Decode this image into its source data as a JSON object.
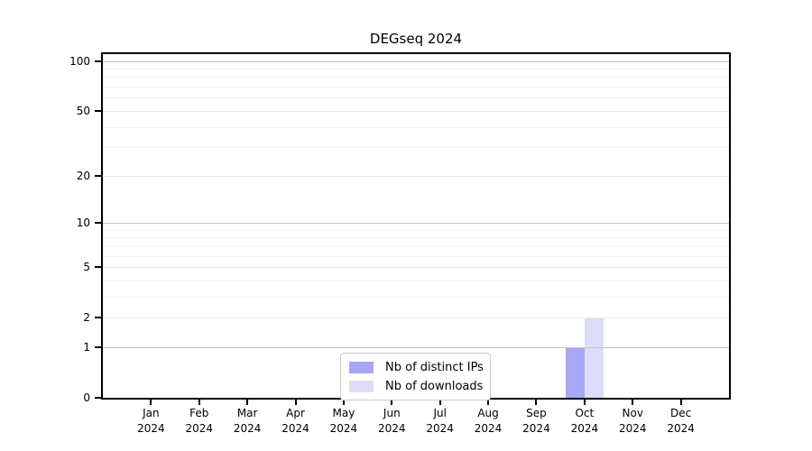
{
  "chart_data": {
    "type": "bar",
    "title": "DEGseq 2024",
    "x_months": [
      "Jan",
      "Feb",
      "Mar",
      "Apr",
      "May",
      "Jun",
      "Jul",
      "Aug",
      "Sep",
      "Oct",
      "Nov",
      "Dec"
    ],
    "x_year": "2024",
    "series": [
      {
        "name": "Nb of distinct IPs",
        "color": "#a7a7f6",
        "values": [
          0,
          0,
          0,
          0,
          0,
          0,
          0,
          0,
          0,
          1,
          0,
          0
        ]
      },
      {
        "name": "Nb of downloads",
        "color": "#dcdcf6",
        "values": [
          0,
          0,
          0,
          0,
          0,
          0,
          0,
          0,
          0,
          2,
          0,
          0
        ]
      }
    ],
    "yscale": "log1p",
    "ylim": [
      0,
      110
    ],
    "yticks": [
      0,
      1,
      2,
      5,
      10,
      20,
      50,
      100
    ],
    "ytick_decades": [
      1,
      10,
      100
    ],
    "minor_yticks": [
      3,
      4,
      6,
      7,
      8,
      9,
      30,
      40,
      60,
      70,
      80,
      90
    ],
    "grid": "horizontal",
    "legend": {
      "position": "inside-bottom-center",
      "entries": [
        "Nb of distinct IPs",
        "Nb of downloads"
      ]
    }
  },
  "colors": {
    "axis": "#000000",
    "grid_major": "#c2c2c2",
    "grid_minor": "#f0f0f0",
    "legend_border": "#c9c9c9",
    "background": "#ffffff"
  }
}
